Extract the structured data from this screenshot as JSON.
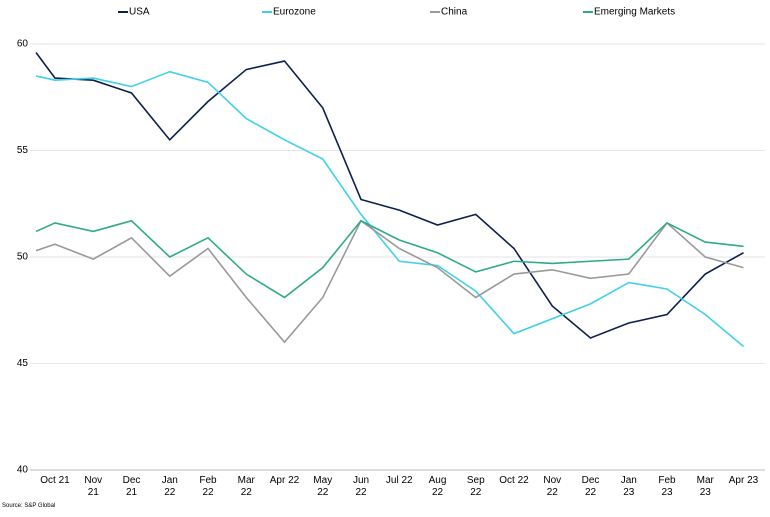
{
  "chart_data": {
    "type": "line",
    "categories": [
      null,
      "Oct 21",
      "Nov 21",
      "Dec 21",
      "Jan 22",
      "Feb 22",
      "Mar 22",
      "Apr 22",
      "May 22",
      "Jun 22",
      "Jul 22",
      "Aug 22",
      "Sep 22",
      "Oct 22",
      "Nov 22",
      "Dec 22",
      "Jan 23",
      "Feb 23",
      "Mar 23",
      "Apr 23"
    ],
    "series": [
      {
        "name": "USA",
        "color": "#0d1f4d",
        "values": [
          59.6,
          58.4,
          58.3,
          57.7,
          55.5,
          57.3,
          58.8,
          59.2,
          57.0,
          52.7,
          52.2,
          51.5,
          52.0,
          50.4,
          47.7,
          46.2,
          46.9,
          47.3,
          49.2,
          50.2
        ]
      },
      {
        "name": "Eurozone",
        "color": "#3fd0ea",
        "values": [
          58.5,
          58.3,
          58.4,
          58.0,
          58.7,
          58.2,
          56.5,
          55.5,
          54.6,
          52.0,
          49.8,
          49.6,
          48.4,
          46.4,
          47.1,
          47.8,
          48.8,
          48.5,
          47.3,
          45.8
        ]
      },
      {
        "name": "China",
        "color": "#999999",
        "values": [
          50.3,
          50.6,
          49.9,
          50.9,
          49.1,
          50.4,
          48.1,
          46.0,
          48.1,
          51.7,
          50.4,
          49.5,
          48.1,
          49.2,
          49.4,
          49.0,
          49.2,
          51.6,
          50.0,
          49.5
        ]
      },
      {
        "name": "Emerging Markets",
        "color": "#2eaa8a",
        "values": [
          51.2,
          51.6,
          51.2,
          51.7,
          50.0,
          50.9,
          49.2,
          48.1,
          49.5,
          51.7,
          50.8,
          50.2,
          49.3,
          49.8,
          49.7,
          49.8,
          49.9,
          51.6,
          50.7,
          50.5
        ]
      }
    ],
    "ylim": [
      40,
      60
    ],
    "yticks": [
      40,
      45,
      50,
      55,
      60
    ],
    "grid": true,
    "legend": "top",
    "source": "Source: S&P Global"
  }
}
